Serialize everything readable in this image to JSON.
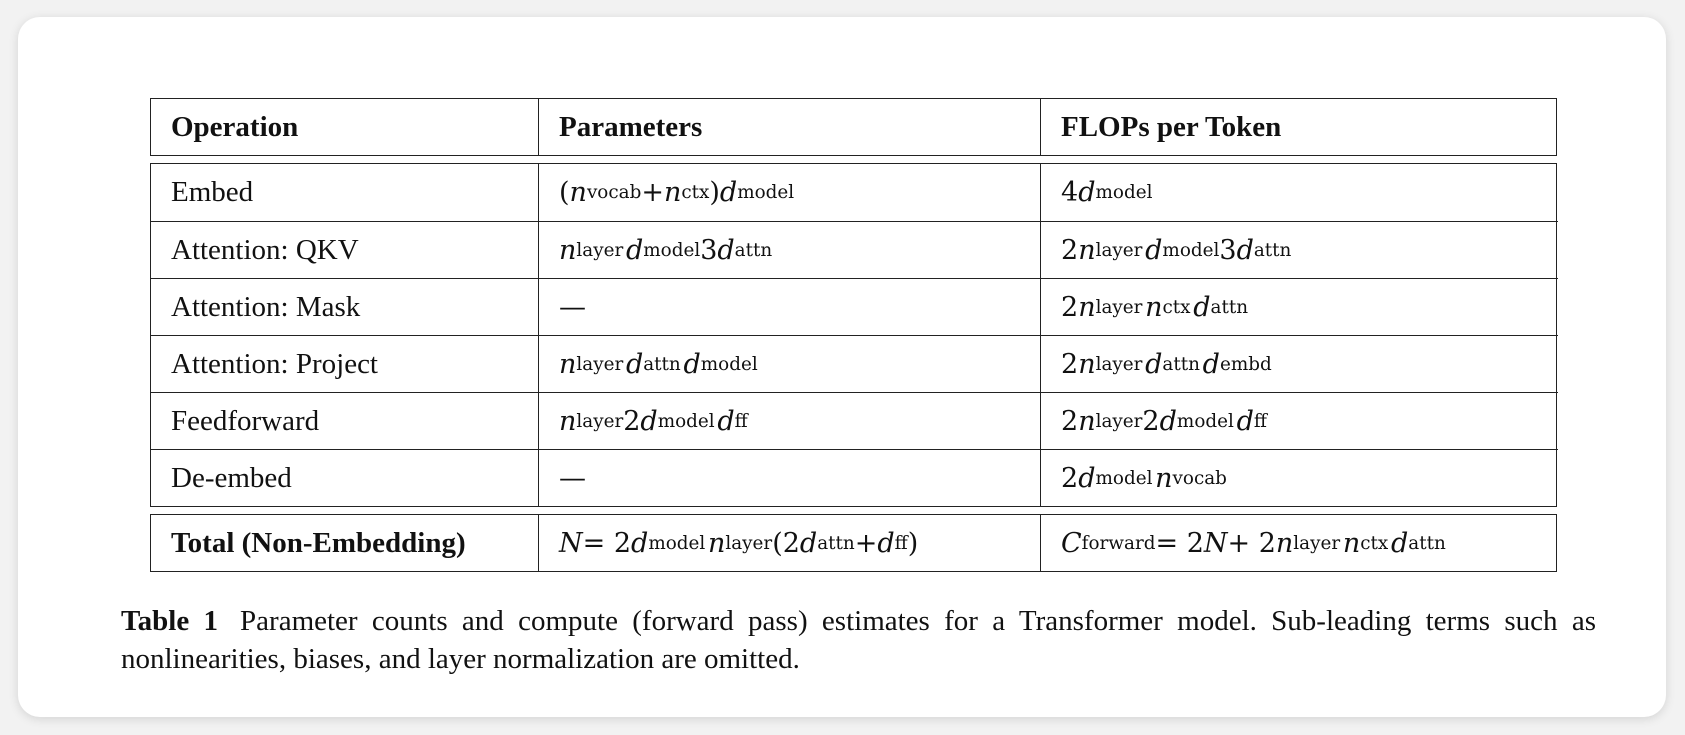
{
  "table": {
    "headers": [
      "Operation",
      "Parameters",
      "FLOPs per Token"
    ],
    "rows": [
      {
        "operation": "Embed",
        "parameters": "(n_vocab + n_ctx) d_model",
        "flops": "4d_model"
      },
      {
        "operation": "Attention: QKV",
        "parameters": "n_layer d_model 3d_attn",
        "flops": "2n_layer d_model 3d_attn"
      },
      {
        "operation": "Attention: Mask",
        "parameters": "—",
        "flops": "2n_layer n_ctx d_attn"
      },
      {
        "operation": "Attention: Project",
        "parameters": "n_layer d_attn d_model",
        "flops": "2n_layer d_attn d_embd"
      },
      {
        "operation": "Feedforward",
        "parameters": "n_layer 2d_model d_ff",
        "flops": "2n_layer 2d_model d_ff"
      },
      {
        "operation": "De-embed",
        "parameters": "—",
        "flops": "2d_model n_vocab"
      }
    ],
    "total": {
      "operation": "Total (Non-Embedding)",
      "parameters": "N = 2d_model n_layer (2d_attn + d_ff)",
      "flops": "C_forward = 2N + 2n_layer n_ctx d_attn"
    }
  },
  "caption": {
    "label": "Table 1",
    "text": "Parameter counts and compute (forward pass) estimates for a Transformer model.  Sub-leading terms such as nonlinearities, biases, and layer normalization are omitted."
  }
}
